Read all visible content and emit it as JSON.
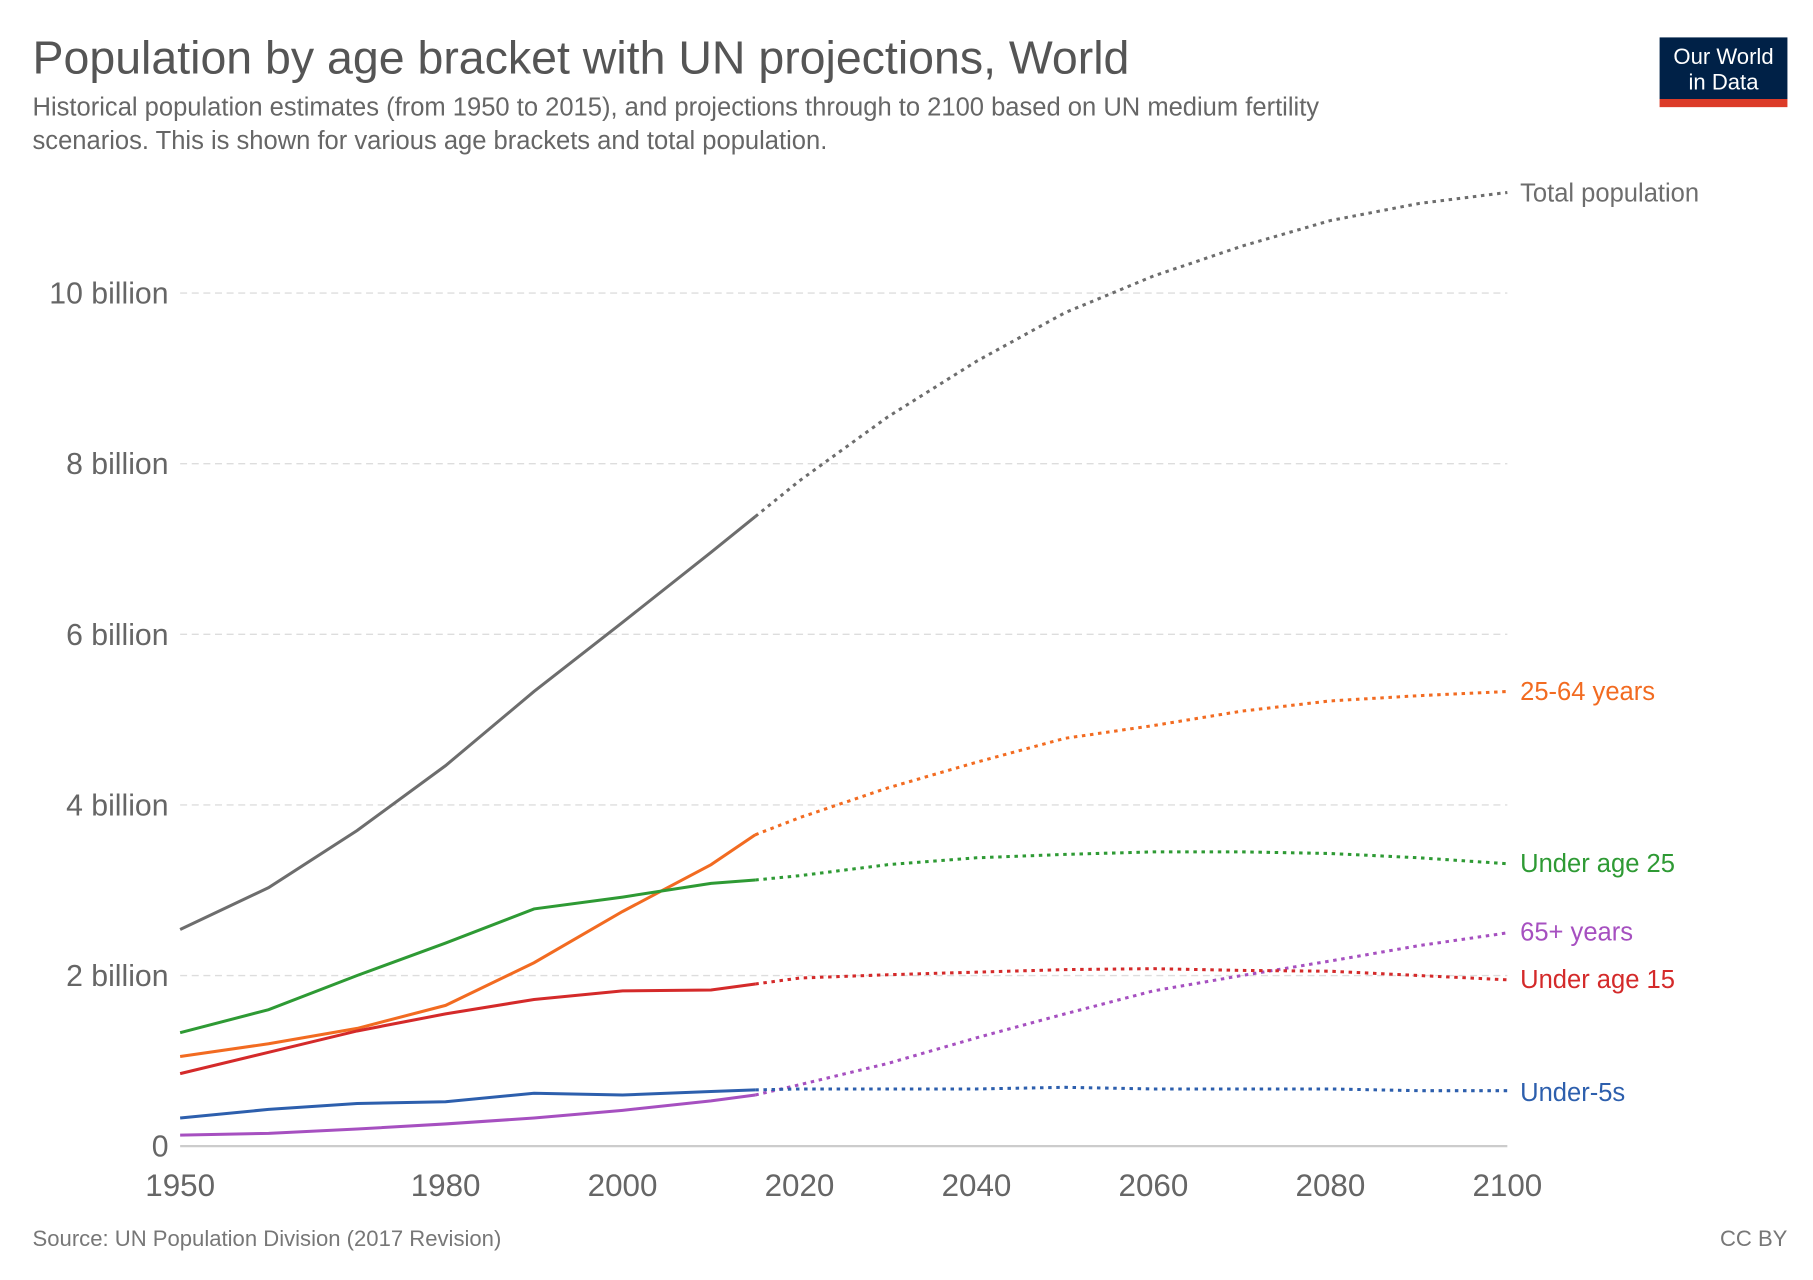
{
  "header": {
    "title": "Population by age bracket with UN projections, World",
    "subtitle_line1": "Historical population estimates (from 1950 to 2015), and projections through to 2100 based on UN medium fertility",
    "subtitle_line2": "scenarios. This is shown for various age brackets and total population."
  },
  "logo": {
    "line1": "Our World",
    "line2": "in Data",
    "bg": "#002147",
    "bar": "#dc3b28"
  },
  "footer": {
    "source": "Source: UN Population Division (2017 Revision)",
    "license": "CC BY"
  },
  "chart_data": {
    "type": "line",
    "title": "Population by age bracket with UN projections, World",
    "xlabel": "",
    "ylabel": "",
    "xlim": [
      1950,
      2100
    ],
    "ylim": [
      0,
      11.2
    ],
    "grid": "horizontal dashed",
    "legend": "inline labels at right end",
    "projection_start": 2015,
    "projection_style": "dotted",
    "x_ticks": [
      1950,
      1980,
      2000,
      2020,
      2040,
      2060,
      2080,
      2100
    ],
    "y_ticks": [
      {
        "value": 0,
        "label": "0"
      },
      {
        "value": 2,
        "label": "2 billion"
      },
      {
        "value": 4,
        "label": "4 billion"
      },
      {
        "value": 6,
        "label": "6 billion"
      },
      {
        "value": 8,
        "label": "8 billion"
      },
      {
        "value": 10,
        "label": "10 billion"
      }
    ],
    "x": [
      1950,
      1960,
      1970,
      1980,
      1990,
      2000,
      2010,
      2015,
      2020,
      2030,
      2040,
      2050,
      2060,
      2070,
      2080,
      2090,
      2100
    ],
    "series": [
      {
        "name": "Total population",
        "color": "#6d6d6d",
        "values": [
          2.54,
          3.03,
          3.7,
          4.46,
          5.33,
          6.14,
          6.96,
          7.38,
          7.8,
          8.55,
          9.2,
          9.77,
          10.2,
          10.55,
          10.85,
          11.05,
          11.18
        ]
      },
      {
        "name": "25-64 years",
        "color": "#f26b21",
        "values": [
          1.05,
          1.2,
          1.38,
          1.65,
          2.15,
          2.75,
          3.3,
          3.65,
          3.85,
          4.2,
          4.5,
          4.78,
          4.93,
          5.1,
          5.22,
          5.28,
          5.33
        ]
      },
      {
        "name": "Under age 25",
        "color": "#2e9a34",
        "values": [
          1.33,
          1.6,
          2.0,
          2.38,
          2.78,
          2.92,
          3.08,
          3.12,
          3.17,
          3.3,
          3.38,
          3.42,
          3.45,
          3.45,
          3.43,
          3.38,
          3.31
        ]
      },
      {
        "name": "65+ years",
        "color": "#a650c0",
        "values": [
          0.13,
          0.15,
          0.2,
          0.26,
          0.33,
          0.42,
          0.53,
          0.6,
          0.72,
          0.97,
          1.27,
          1.55,
          1.82,
          2.0,
          2.17,
          2.35,
          2.5
        ]
      },
      {
        "name": "Under age 15",
        "color": "#d42a2a",
        "values": [
          0.85,
          1.1,
          1.35,
          1.55,
          1.72,
          1.82,
          1.83,
          1.9,
          1.97,
          2.01,
          2.04,
          2.07,
          2.08,
          2.06,
          2.05,
          2.0,
          1.95
        ]
      },
      {
        "name": "Under-5s",
        "color": "#2d5fad",
        "values": [
          0.33,
          0.43,
          0.5,
          0.52,
          0.62,
          0.6,
          0.64,
          0.66,
          0.67,
          0.67,
          0.67,
          0.69,
          0.67,
          0.67,
          0.67,
          0.65,
          0.65
        ]
      }
    ]
  }
}
